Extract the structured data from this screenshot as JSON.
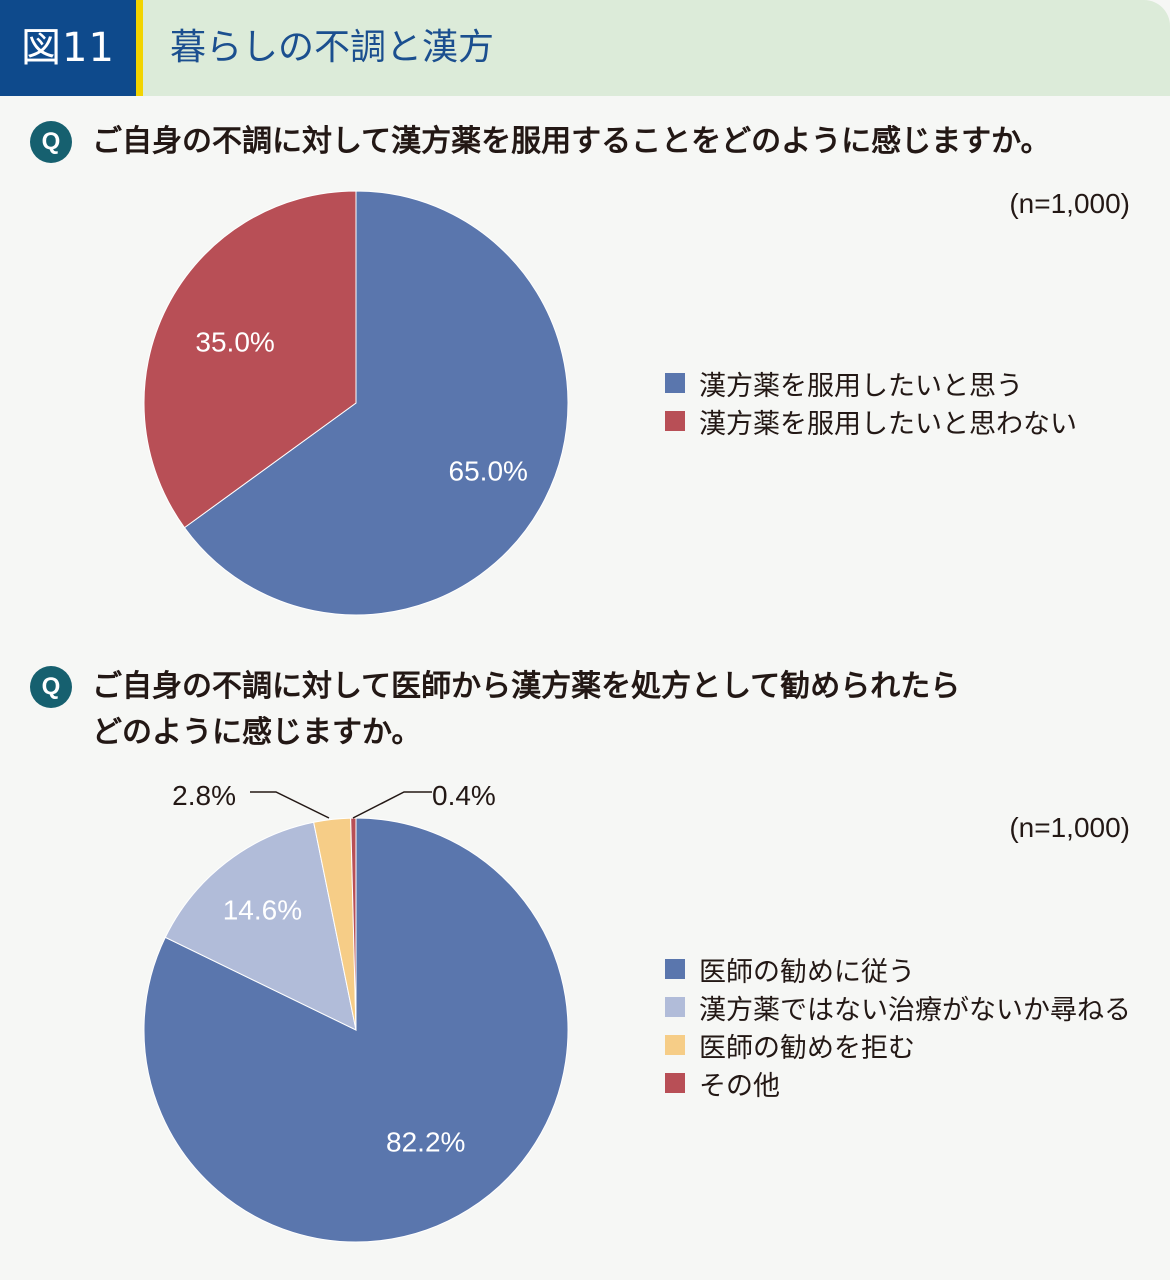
{
  "header": {
    "figure_label": "図11",
    "title": "暮らしの不調と漢方"
  },
  "q_icon": "Q",
  "colors": {
    "header_bg": "#dcebd9",
    "label_bg": "#0e4a8c",
    "accent_stripe": "#f2d400",
    "q_badge": "#16606f"
  },
  "chart_data": [
    {
      "type": "pie",
      "title": "ご自身の不調に対して漢方薬を服用することをどのように感じますか。",
      "sample_size": "(n=1,000)",
      "start_angle": 0,
      "direction": "clockwise",
      "slices": [
        {
          "label": "漢方薬を服用したいと思う",
          "value": 65.0,
          "value_label": "65.0%",
          "color": "#5a76ad",
          "label_color": "#ffffff",
          "label_inside": true
        },
        {
          "label": "漢方薬を服用したいと思わない",
          "value": 35.0,
          "value_label": "35.0%",
          "color": "#b84f56",
          "label_color": "#ffffff",
          "label_inside": true
        }
      ]
    },
    {
      "type": "pie",
      "title": "ご自身の不調に対して医師から漢方薬を処方として勧められたらどのように感じますか。",
      "title_lines": [
        "ご自身の不調に対して医師から漢方薬を処方として勧められたら",
        "どのように感じますか。"
      ],
      "sample_size": "(n=1,000)",
      "start_angle": 0,
      "direction": "clockwise",
      "slices": [
        {
          "label": "医師の勧めに従う",
          "value": 82.2,
          "value_label": "82.2%",
          "color": "#5a76ad",
          "label_color": "#ffffff",
          "label_inside": true
        },
        {
          "label": "漢方薬ではない治療がないか尋ねる",
          "value": 14.6,
          "value_label": "14.6%",
          "color": "#b1bcd9",
          "label_color": "#ffffff",
          "label_inside": true
        },
        {
          "label": "医師の勧めを拒む",
          "value": 2.8,
          "value_label": "2.8%",
          "color": "#f6cd87",
          "label_color": "#231815",
          "label_inside": false,
          "callout": "left"
        },
        {
          "label": "その他",
          "value": 0.4,
          "value_label": "0.4%",
          "color": "#b84f56",
          "label_color": "#231815",
          "label_inside": false,
          "callout": "right"
        }
      ]
    }
  ]
}
